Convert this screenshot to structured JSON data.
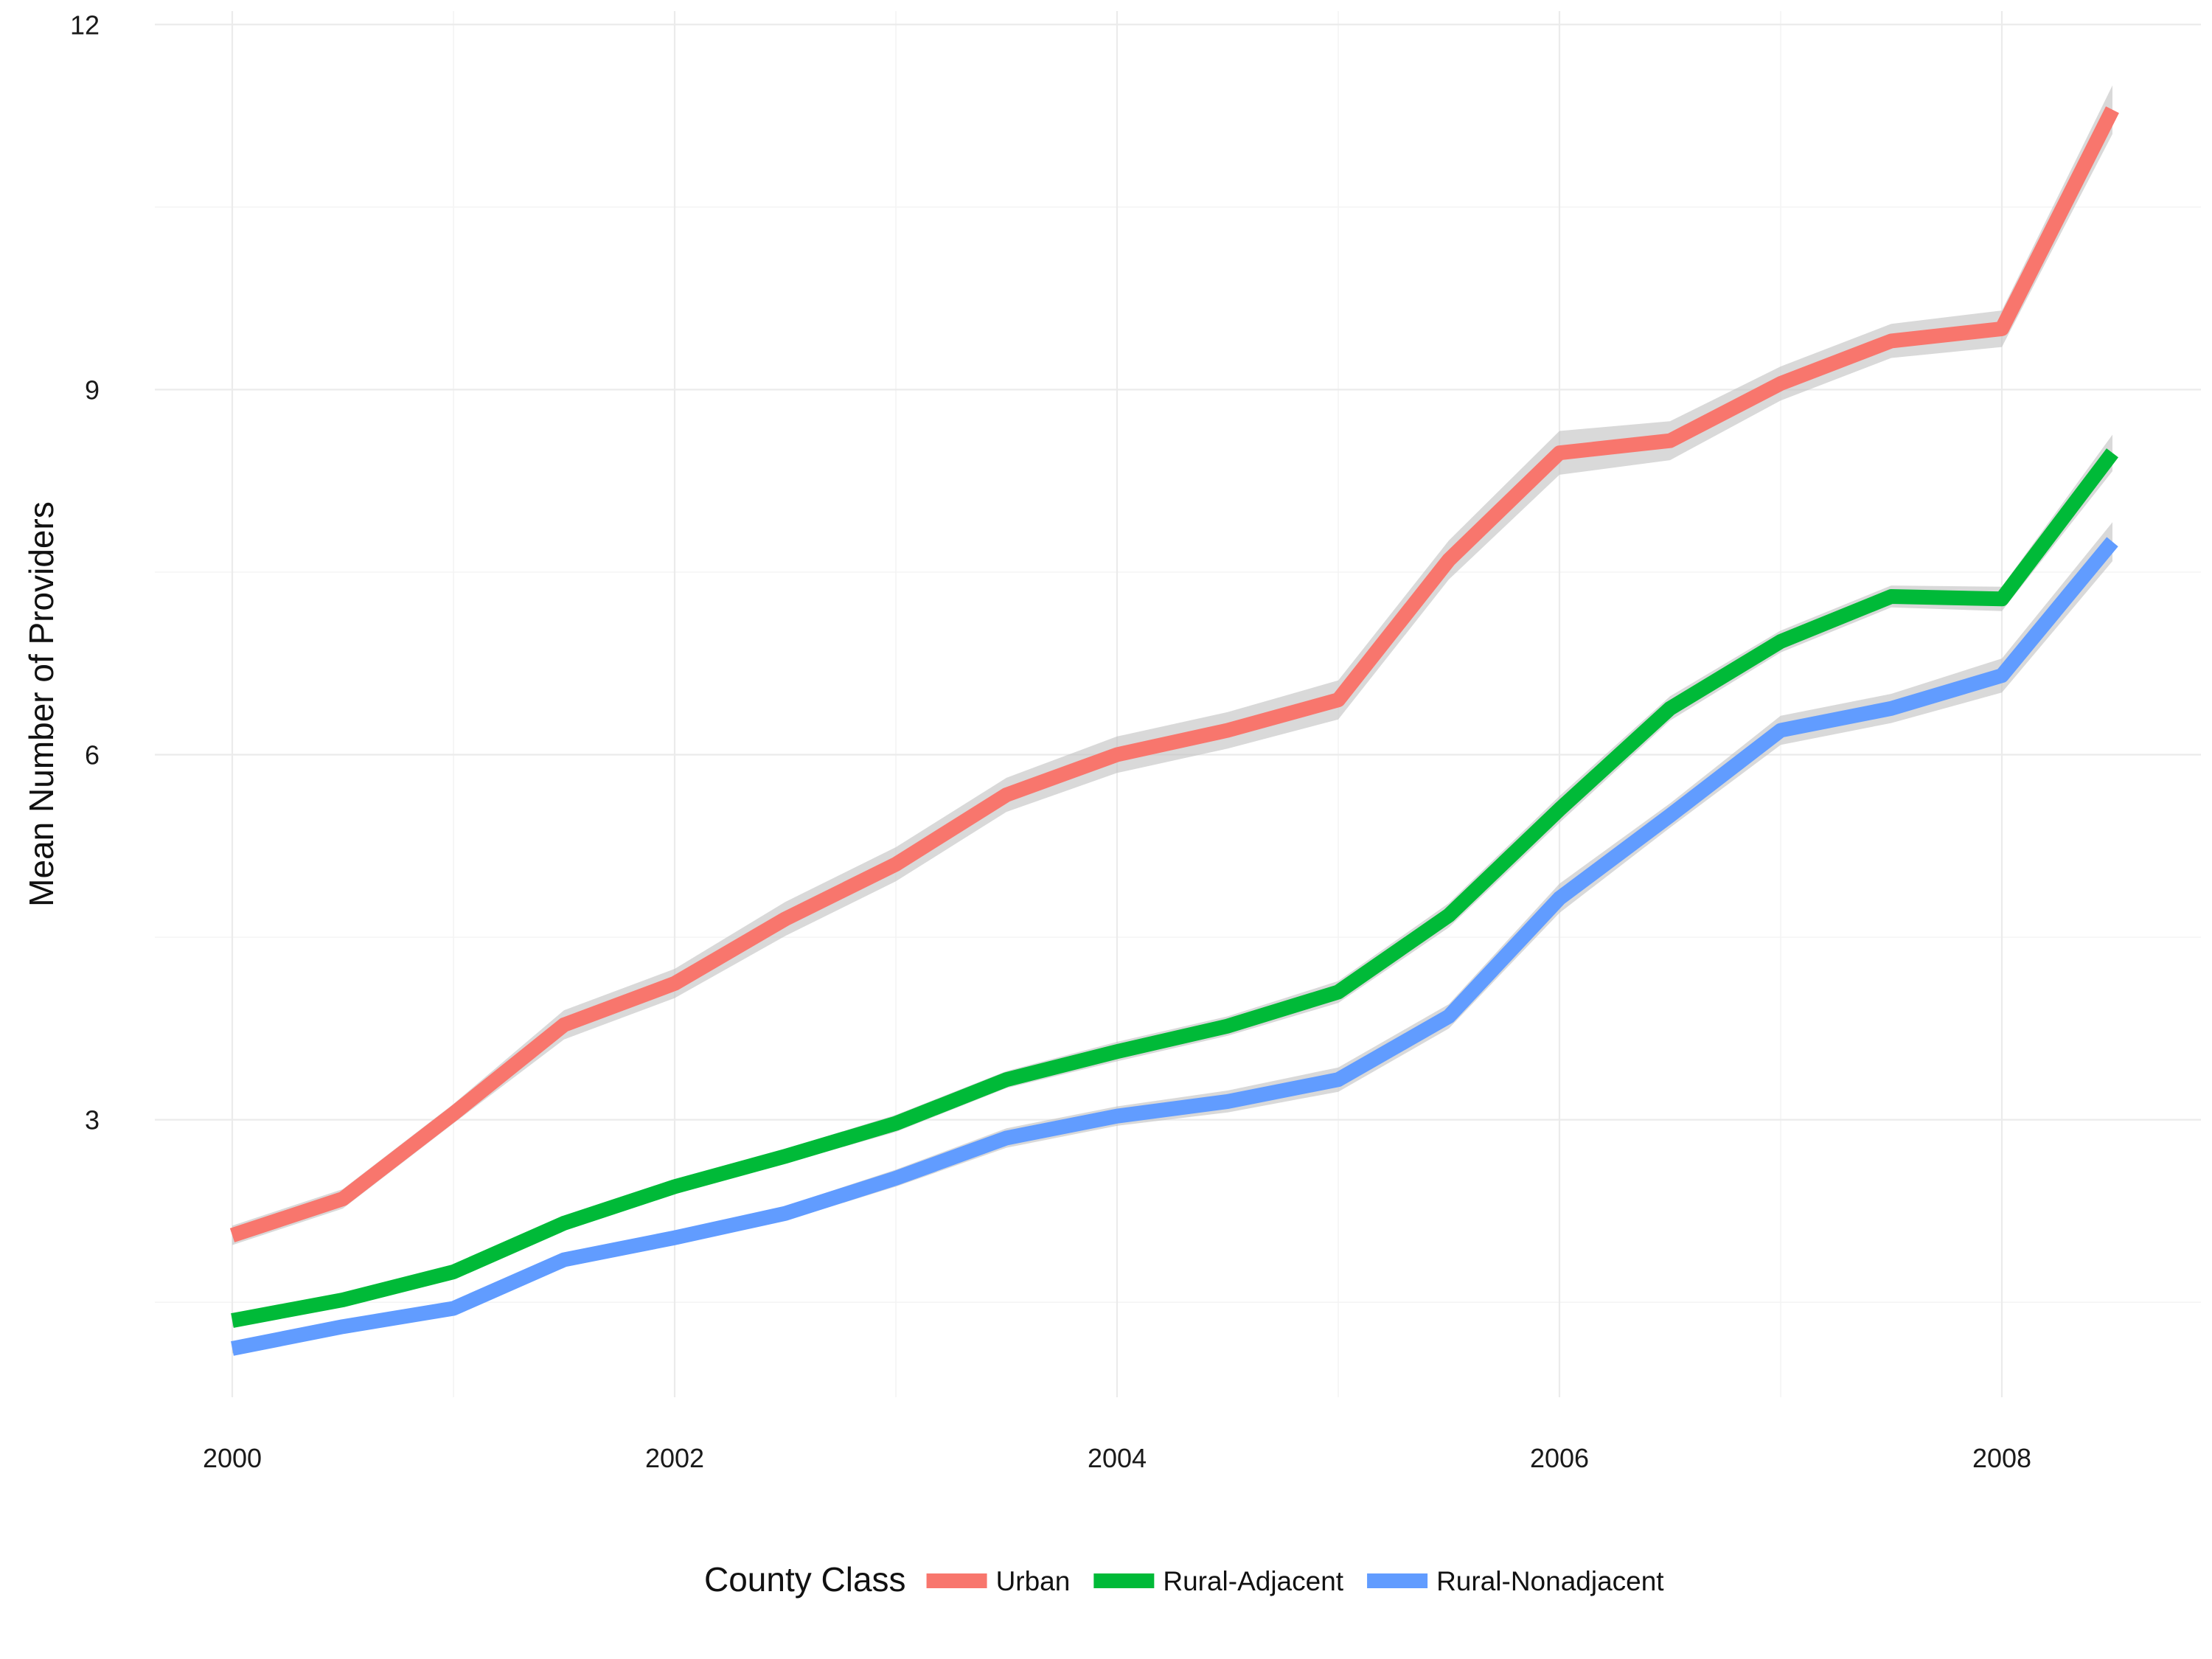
{
  "chart_data": {
    "type": "line",
    "title": "",
    "xlabel": "",
    "ylabel": "Mean Number of Providers",
    "xlim": [
      1999.65,
      2008.9
    ],
    "ylim": [
      0.75,
      12.05
    ],
    "x_ticks": [
      2000,
      2002,
      2004,
      2006,
      2008
    ],
    "y_ticks": [
      3,
      6,
      9,
      12
    ],
    "x_tick_labels": [
      "2000",
      "2002",
      "2004",
      "2006",
      "2008"
    ],
    "y_tick_labels": [
      "3",
      "6",
      "9",
      "12"
    ],
    "x": [
      2000,
      2000.5,
      2001,
      2001.5,
      2002,
      2002.5,
      2003,
      2003.5,
      2004,
      2004.5,
      2005,
      2005.5,
      2006,
      2006.5,
      2007,
      2007.5,
      2008,
      2008.5
    ],
    "grid": true,
    "legend": {
      "title": "County Class",
      "position": "bottom"
    },
    "series": [
      {
        "name": "Urban",
        "color": "#F8766D",
        "values": [
          2.05,
          2.35,
          3.05,
          3.78,
          4.12,
          4.65,
          5.1,
          5.67,
          6.0,
          6.2,
          6.45,
          7.6,
          8.48,
          8.58,
          9.05,
          9.4,
          9.5,
          11.3
        ],
        "band": [
          0.08,
          0.08,
          0.08,
          0.12,
          0.12,
          0.14,
          0.14,
          0.14,
          0.15,
          0.15,
          0.16,
          0.16,
          0.18,
          0.16,
          0.14,
          0.14,
          0.15,
          0.2
        ]
      },
      {
        "name": "Rural-Adjacent",
        "color": "#00BA38",
        "values": [
          1.35,
          1.52,
          1.75,
          2.15,
          2.45,
          2.7,
          2.97,
          3.33,
          3.56,
          3.77,
          4.05,
          4.68,
          5.55,
          6.38,
          6.93,
          7.3,
          7.28,
          8.48
        ],
        "band": [
          0.05,
          0.05,
          0.05,
          0.06,
          0.06,
          0.06,
          0.07,
          0.07,
          0.08,
          0.08,
          0.09,
          0.1,
          0.11,
          0.1,
          0.09,
          0.09,
          0.1,
          0.15
        ]
      },
      {
        "name": "Rural-Nonadjacent",
        "color": "#619CFF",
        "values": [
          1.12,
          1.3,
          1.45,
          1.85,
          2.03,
          2.23,
          2.52,
          2.85,
          3.03,
          3.15,
          3.33,
          3.85,
          4.82,
          5.5,
          6.2,
          6.38,
          6.65,
          7.75
        ],
        "band": [
          0.04,
          0.04,
          0.05,
          0.06,
          0.06,
          0.06,
          0.07,
          0.08,
          0.08,
          0.09,
          0.1,
          0.1,
          0.12,
          0.1,
          0.12,
          0.12,
          0.14,
          0.16
        ]
      }
    ]
  }
}
